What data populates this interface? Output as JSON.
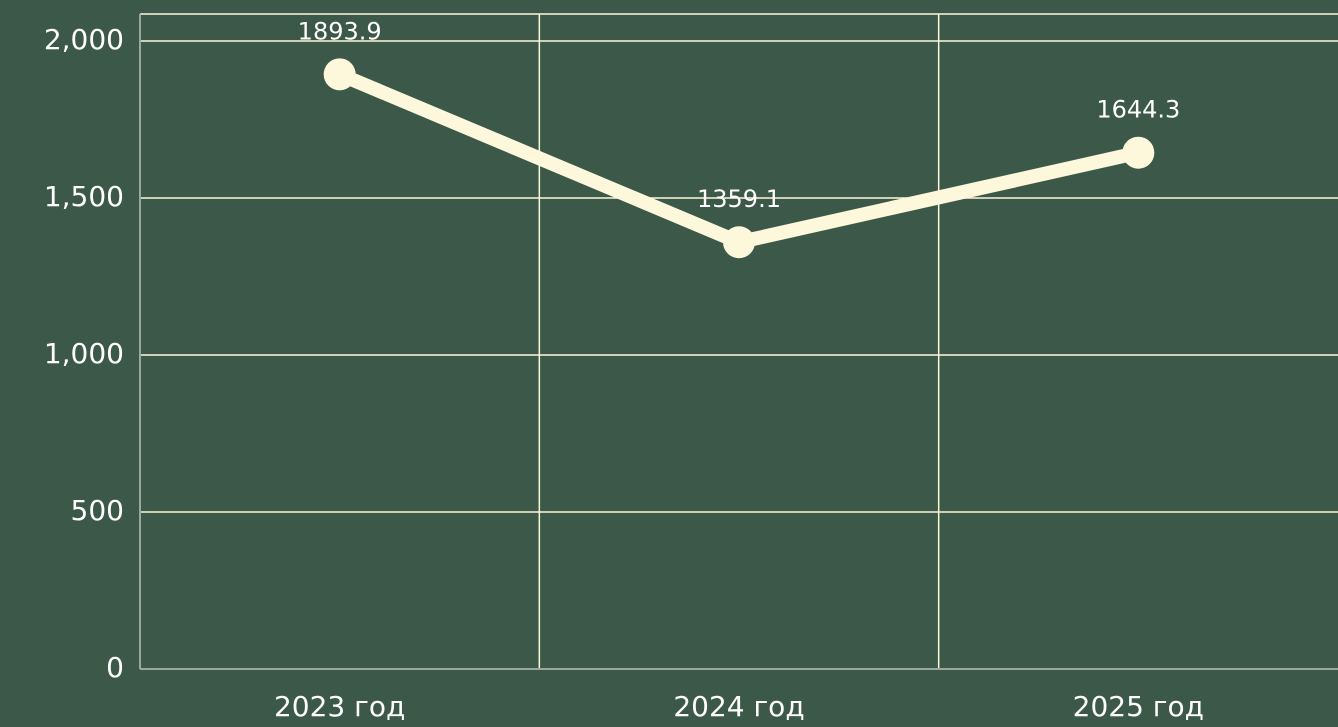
{
  "chart_data": {
    "type": "line",
    "categories": [
      "2023 год",
      "2024 год",
      "2025 год"
    ],
    "series": [
      {
        "name": null,
        "color": "#fdf8dc",
        "values": [
          1893.9,
          1359.1,
          1644.3
        ]
      }
    ],
    "ylim": [
      0,
      2086
    ],
    "yticks": [
      0,
      500,
      {
        "value": 1000,
        "label": "1,000"
      },
      {
        "value": 1500,
        "label": "1,500"
      },
      {
        "value": 2000,
        "label": "2,000"
      }
    ],
    "grid": true
  }
}
